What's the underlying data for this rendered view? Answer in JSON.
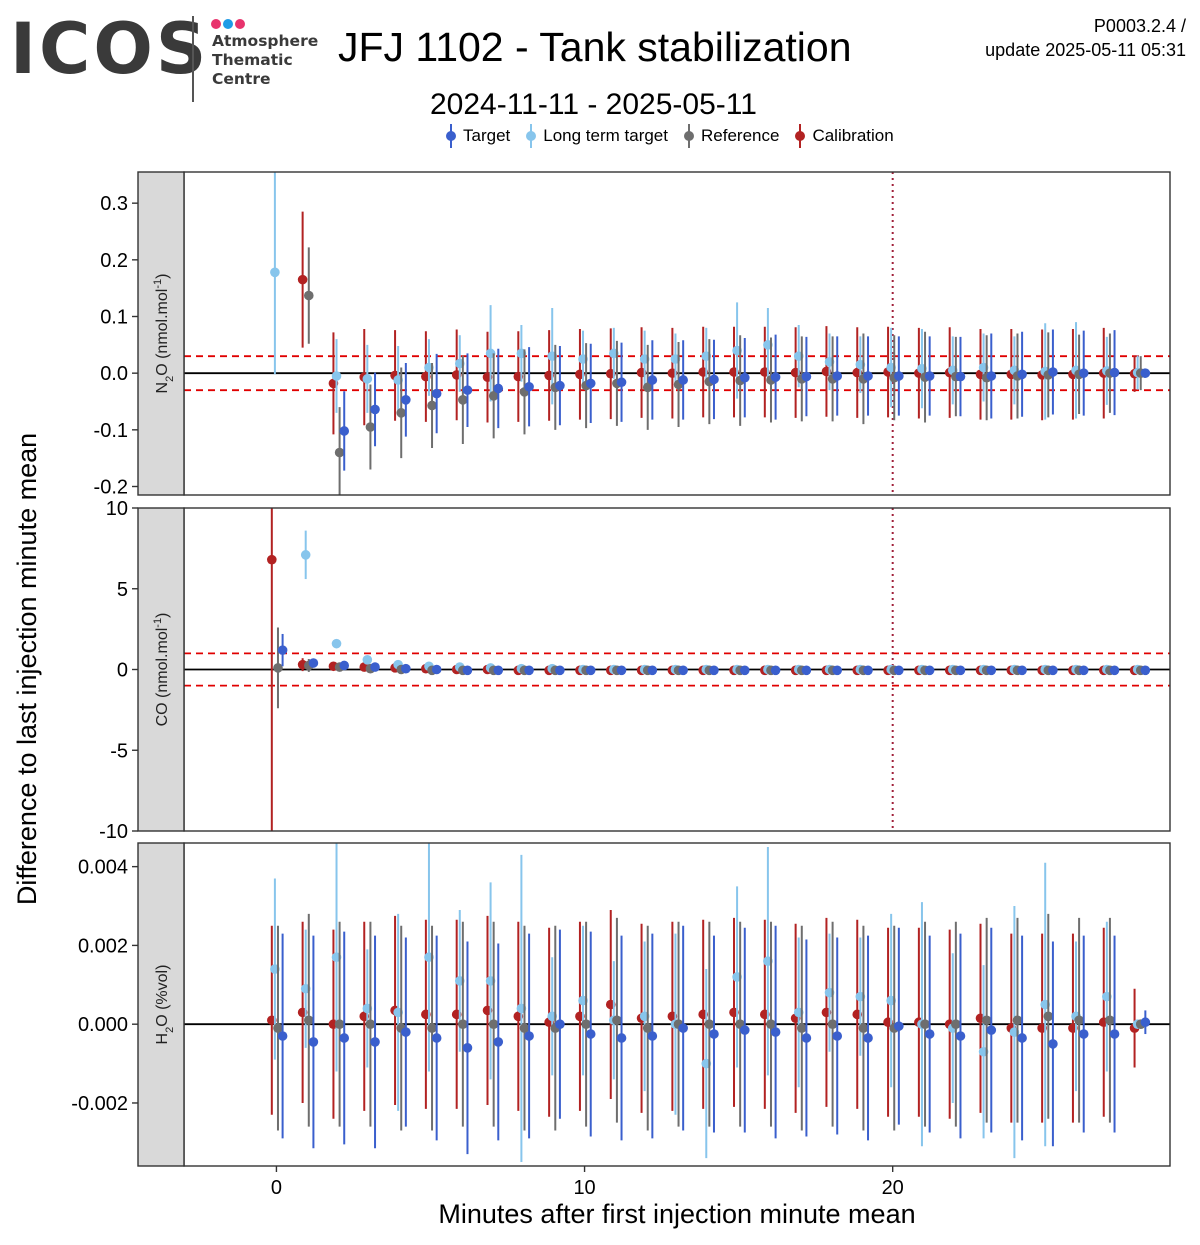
{
  "header": {
    "logo_text": "ICOS",
    "logo_sub_lines": [
      "Atmosphere",
      "Thematic",
      "Centre"
    ],
    "logo_dot_colors": [
      "#e8336d",
      "#1e9be6",
      "#e8336d"
    ],
    "title": "JFJ 1102 - Tank stabilization",
    "subtitle": "2024-11-11 - 2025-05-11",
    "version_line1": "P0003.2.4 /",
    "version_line2": "update  2025-05-11 05:31"
  },
  "legend": {
    "items": [
      {
        "label": "Target",
        "color": "#3a5fcd"
      },
      {
        "label": "Long term target",
        "color": "#87c5ec"
      },
      {
        "label": "Reference",
        "color": "#6e6e6e"
      },
      {
        "label": "Calibration",
        "color": "#b22222"
      }
    ]
  },
  "chart_data": {
    "type": "scatter",
    "xlabel": "Minutes after first injection minute mean",
    "ylabel": "Difference to last injection minute mean",
    "xlim": [
      -3,
      29
    ],
    "x_ticks": [
      0,
      10,
      20
    ],
    "x_tick_labels": [
      "0",
      "10",
      "20"
    ],
    "vertical_marker_x": 20,
    "series_colors": {
      "calibration": "#b22222",
      "longterm": "#87c5ec",
      "reference": "#6e6e6e",
      "target": "#3a5fcd"
    },
    "x_offsets": {
      "calibration": -0.15,
      "longterm": -0.05,
      "reference": 0.05,
      "target": 0.2
    },
    "x_minutes": [
      0,
      1,
      2,
      3,
      4,
      5,
      6,
      7,
      8,
      9,
      10,
      11,
      12,
      13,
      14,
      15,
      16,
      17,
      18,
      19,
      20,
      21,
      22,
      23,
      24,
      25,
      26,
      27,
      28
    ],
    "panels": [
      {
        "strip_label": "N2O (nmol.mol-1)",
        "strip_main": "N",
        "strip_sub": "2",
        "strip_after": "O (nmol.mol",
        "strip_sup": "-1",
        "strip_end": ")",
        "ylim": [
          -0.215,
          0.355
        ],
        "y_ticks": [
          -0.2,
          -0.1,
          0.0,
          0.1,
          0.2,
          0.3
        ],
        "y_tick_labels": [
          "-0.2",
          "-0.1",
          "0.0",
          "0.1",
          "0.2",
          "0.3"
        ],
        "threshold": 0.03,
        "show_vline": true,
        "series": {
          "calibration": {
            "y": [
              null,
              0.165,
              -0.018,
              -0.007,
              -0.004,
              -0.006,
              -0.003,
              -0.007,
              -0.006,
              -0.004,
              -0.002,
              -0.001,
              0.001,
              0.0,
              0.002,
              0.002,
              0.002,
              0.001,
              0.003,
              0.001,
              0.002,
              0.0,
              0.001,
              -0.002,
              -0.002,
              -0.003,
              -0.002,
              0.0,
              -0.001
            ],
            "err": [
              null,
              0.12,
              0.09,
              0.085,
              0.08,
              0.08,
              0.08,
              0.08,
              0.08,
              0.08,
              0.08,
              0.08,
              0.08,
              0.08,
              0.08,
              0.08,
              0.08,
              0.08,
              0.08,
              0.08,
              0.08,
              0.08,
              0.08,
              0.08,
              0.08,
              0.08,
              0.08,
              0.08,
              0.032
            ]
          },
          "longterm": {
            "y": [
              0.178,
              null,
              -0.005,
              -0.01,
              -0.012,
              0.01,
              0.017,
              0.035,
              0.035,
              0.03,
              0.025,
              0.035,
              0.025,
              0.025,
              0.03,
              0.04,
              0.05,
              0.03,
              0.02,
              0.015,
              0.01,
              0.008,
              0.005,
              0.01,
              0.005,
              0.003,
              0.005,
              0.004,
              0.001
            ],
            "err": [
              0.18,
              null,
              0.065,
              0.06,
              0.06,
              0.05,
              0.05,
              0.085,
              0.05,
              0.085,
              0.05,
              0.045,
              0.05,
              0.045,
              0.05,
              0.085,
              0.065,
              0.055,
              0.05,
              0.05,
              0.07,
              0.07,
              0.06,
              0.06,
              0.06,
              0.085,
              0.085,
              0.06,
              0.03
            ]
          },
          "reference": {
            "y": [
              null,
              0.137,
              -0.14,
              -0.095,
              -0.07,
              -0.057,
              -0.047,
              -0.04,
              -0.033,
              -0.025,
              -0.022,
              -0.018,
              -0.025,
              -0.02,
              -0.015,
              -0.013,
              -0.012,
              -0.01,
              -0.01,
              -0.01,
              -0.008,
              -0.007,
              -0.006,
              -0.008,
              -0.005,
              -0.003,
              -0.002,
              0.0,
              0.0
            ],
            "err": [
              null,
              0.085,
              0.08,
              0.075,
              0.08,
              0.075,
              0.078,
              0.075,
              0.075,
              0.075,
              0.075,
              0.075,
              0.075,
              0.075,
              0.075,
              0.08,
              0.075,
              0.075,
              0.075,
              0.08,
              0.075,
              0.08,
              0.07,
              0.075,
              0.075,
              0.075,
              0.07,
              0.07,
              0.03
            ]
          },
          "target": {
            "y": [
              null,
              null,
              -0.102,
              -0.064,
              -0.047,
              -0.036,
              -0.03,
              -0.027,
              -0.024,
              -0.022,
              -0.018,
              -0.016,
              -0.012,
              -0.012,
              -0.011,
              -0.008,
              -0.007,
              -0.006,
              -0.005,
              -0.005,
              -0.005,
              -0.005,
              -0.006,
              -0.005,
              -0.002,
              0.002,
              0.0,
              0.001,
              0.0
            ],
            "err": [
              null,
              null,
              0.07,
              0.065,
              0.065,
              0.07,
              0.065,
              0.07,
              0.07,
              0.07,
              0.07,
              0.07,
              0.07,
              0.07,
              0.07,
              0.07,
              0.075,
              0.07,
              0.07,
              0.07,
              0.07,
              0.07,
              0.07,
              0.075,
              0.075,
              0.075,
              0.075,
              0.075,
              0.0
            ]
          }
        }
      },
      {
        "strip_label": "CO (nmol.mol-1)",
        "strip_main": "CO (nmol.mol",
        "strip_sub": "",
        "strip_after": "",
        "strip_sup": "-1",
        "strip_end": ")",
        "ylim": [
          -10,
          10
        ],
        "y_ticks": [
          -10,
          -5,
          0,
          5,
          10
        ],
        "y_tick_labels": [
          "-10",
          "-5",
          "0",
          "5",
          "10"
        ],
        "threshold": 1.0,
        "show_vline": true,
        "series": {
          "calibration": {
            "y": [
              6.8,
              0.3,
              0.2,
              0.15,
              0.1,
              0.05,
              0.0,
              0.0,
              -0.05,
              -0.05,
              -0.05,
              -0.05,
              -0.05,
              -0.05,
              -0.05,
              -0.05,
              -0.05,
              -0.05,
              -0.05,
              -0.05,
              -0.05,
              -0.05,
              -0.05,
              -0.05,
              -0.05,
              -0.05,
              -0.05,
              -0.05,
              -0.05
            ],
            "err": [
              17,
              0.4,
              0.15,
              0.1,
              0.1,
              0.1,
              0.1,
              0.1,
              0.1,
              0.1,
              0.1,
              0.1,
              0.1,
              0.1,
              0.1,
              0.1,
              0.1,
              0.1,
              0.1,
              0.1,
              0.1,
              0.1,
              0.1,
              0.1,
              0.1,
              0.1,
              0.1,
              0.1,
              0.1
            ]
          },
          "longterm": {
            "y": [
              null,
              7.1,
              1.6,
              0.6,
              0.3,
              0.2,
              0.15,
              0.1,
              0.05,
              0.05,
              0.0,
              0.0,
              0.0,
              0.0,
              0.0,
              0.0,
              0.0,
              0.0,
              0.0,
              0.0,
              0.0,
              0.0,
              0.0,
              0.0,
              0.0,
              0.0,
              0.0,
              0.0,
              0.0
            ],
            "err": [
              null,
              1.5,
              0.2,
              0.15,
              0.1,
              0.1,
              0.1,
              0.1,
              0.1,
              0.1,
              0.1,
              0.1,
              0.1,
              0.1,
              0.1,
              0.1,
              0.1,
              0.1,
              0.1,
              0.1,
              0.1,
              0.1,
              0.1,
              0.1,
              0.1,
              0.1,
              0.1,
              0.1,
              0.1
            ]
          },
          "reference": {
            "y": [
              0.1,
              0.25,
              0.15,
              0.05,
              0.0,
              -0.05,
              -0.05,
              -0.05,
              -0.05,
              -0.05,
              -0.05,
              -0.05,
              -0.05,
              -0.05,
              -0.05,
              -0.05,
              -0.05,
              -0.05,
              -0.05,
              -0.05,
              -0.05,
              -0.05,
              -0.05,
              -0.05,
              -0.05,
              -0.05,
              -0.05,
              -0.05,
              -0.05
            ],
            "err": [
              2.5,
              0.4,
              0.2,
              0.15,
              0.1,
              0.1,
              0.1,
              0.1,
              0.1,
              0.1,
              0.1,
              0.1,
              0.1,
              0.1,
              0.1,
              0.1,
              0.1,
              0.1,
              0.1,
              0.1,
              0.1,
              0.1,
              0.1,
              0.1,
              0.1,
              0.1,
              0.1,
              0.1,
              0.1
            ]
          },
          "target": {
            "y": [
              1.2,
              0.4,
              0.25,
              0.15,
              0.05,
              0.0,
              -0.05,
              -0.05,
              -0.05,
              -0.05,
              -0.05,
              -0.05,
              -0.05,
              -0.05,
              -0.05,
              -0.05,
              -0.05,
              -0.05,
              -0.05,
              -0.05,
              -0.05,
              -0.05,
              -0.05,
              -0.05,
              -0.05,
              -0.05,
              -0.05,
              -0.05,
              -0.05
            ],
            "err": [
              1.0,
              0.2,
              0.15,
              0.1,
              0.1,
              0.1,
              0.1,
              0.1,
              0.1,
              0.1,
              0.1,
              0.1,
              0.1,
              0.1,
              0.1,
              0.1,
              0.1,
              0.1,
              0.1,
              0.1,
              0.1,
              0.1,
              0.1,
              0.1,
              0.1,
              0.1,
              0.1,
              0.1,
              0.1
            ]
          }
        }
      },
      {
        "strip_label": "H2O (%vol)",
        "strip_main": "H",
        "strip_sub": "2",
        "strip_after": "O (%vol)",
        "strip_sup": "",
        "strip_end": "",
        "ylim": [
          -0.0036,
          0.0046
        ],
        "y_ticks": [
          -0.002,
          0.0,
          0.002,
          0.004
        ],
        "y_tick_labels": [
          "-0.002",
          "0.000",
          "0.002",
          "0.004"
        ],
        "threshold": null,
        "show_vline": false,
        "series": {
          "calibration": {
            "y": [
              0.0001,
              0.0003,
              0.0,
              0.0002,
              0.00035,
              0.00025,
              0.00025,
              0.00035,
              0.0002,
              5e-05,
              0.0002,
              0.0005,
              0.00015,
              0.0002,
              0.00025,
              0.0003,
              0.00025,
              0.00015,
              0.0003,
              0.00025,
              5e-05,
              5e-05,
              0.0,
              0.00015,
              -0.0001,
              -0.0001,
              -0.0001,
              5e-05,
              -0.0001
            ],
            "err": [
              0.0024,
              0.0023,
              0.0024,
              0.0024,
              0.0024,
              0.0024,
              0.0024,
              0.0024,
              0.0024,
              0.0024,
              0.0024,
              0.0024,
              0.0024,
              0.0024,
              0.0024,
              0.0024,
              0.0024,
              0.0024,
              0.0024,
              0.0024,
              0.0024,
              0.0024,
              0.0024,
              0.0024,
              0.0024,
              0.0024,
              0.0024,
              0.0024,
              0.001
            ]
          },
          "longterm": {
            "y": [
              0.0014,
              0.0009,
              0.0017,
              0.0004,
              0.0003,
              0.0017,
              0.0011,
              0.0011,
              0.0004,
              0.0002,
              0.0006,
              0.0001,
              0.0002,
              0.0,
              -0.001,
              0.0012,
              0.0016,
              0.0003,
              0.0008,
              0.0007,
              0.0006,
              0.0,
              -0.0001,
              -0.0007,
              -0.0002,
              0.0005,
              0.0002,
              0.0007,
              0.0
            ],
            "err": [
              0.0023,
              0.0015,
              0.0029,
              0.0015,
              0.0025,
              0.0029,
              0.0018,
              0.0025,
              0.0039,
              0.0015,
              0.0019,
              0.0015,
              0.0019,
              0.0023,
              0.0024,
              0.0023,
              0.0029,
              0.0019,
              0.0015,
              0.0015,
              0.0022,
              0.0031,
              0.0019,
              0.0022,
              0.0032,
              0.0036,
              0.0019,
              0.0019,
              0.0
            ]
          },
          "reference": {
            "y": [
              -0.0001,
              0.0001,
              0.0,
              0.0,
              -0.0001,
              -0.0001,
              0.0,
              0.0,
              -0.0001,
              -0.0001,
              0.0,
              0.0001,
              -0.0001,
              0.0,
              0.0,
              0.0,
              0.0,
              -0.0001,
              0.0,
              -0.0001,
              -0.0001,
              0.0,
              0.0,
              0.0001,
              0.0001,
              0.0002,
              0.0001,
              0.0001,
              0.0
            ],
            "err": [
              0.0026,
              0.0027,
              0.0026,
              0.0026,
              0.0026,
              0.0026,
              0.0026,
              0.0026,
              0.0026,
              0.0026,
              0.0026,
              0.0026,
              0.0026,
              0.0026,
              0.0026,
              0.0026,
              0.0026,
              0.0026,
              0.0026,
              0.0026,
              0.0026,
              0.0026,
              0.0026,
              0.0026,
              0.0026,
              0.0026,
              0.0026,
              0.0026,
              0.0
            ]
          },
          "target": {
            "y": [
              -0.0003,
              -0.00045,
              -0.00035,
              -0.00045,
              -0.0002,
              -0.00035,
              -0.0006,
              -0.00045,
              -0.0003,
              0.0,
              -0.00025,
              -0.00035,
              -0.0003,
              -0.0001,
              -0.00025,
              -0.00015,
              -0.0002,
              -0.00035,
              -0.0003,
              -0.00035,
              -5e-05,
              -0.00025,
              -0.0003,
              -0.00015,
              -0.00035,
              -0.0005,
              -0.00025,
              -0.00025,
              5e-05
            ],
            "err": [
              0.0026,
              0.0027,
              0.0027,
              0.0027,
              0.0024,
              0.0026,
              0.0027,
              0.0025,
              0.0026,
              0.0024,
              0.0026,
              0.0026,
              0.0026,
              0.0026,
              0.0025,
              0.0026,
              0.0027,
              0.0025,
              0.0025,
              0.0026,
              0.0025,
              0.0025,
              0.0026,
              0.0026,
              0.0026,
              0.0026,
              0.0025,
              0.0025,
              0.0003
            ]
          }
        }
      }
    ]
  }
}
